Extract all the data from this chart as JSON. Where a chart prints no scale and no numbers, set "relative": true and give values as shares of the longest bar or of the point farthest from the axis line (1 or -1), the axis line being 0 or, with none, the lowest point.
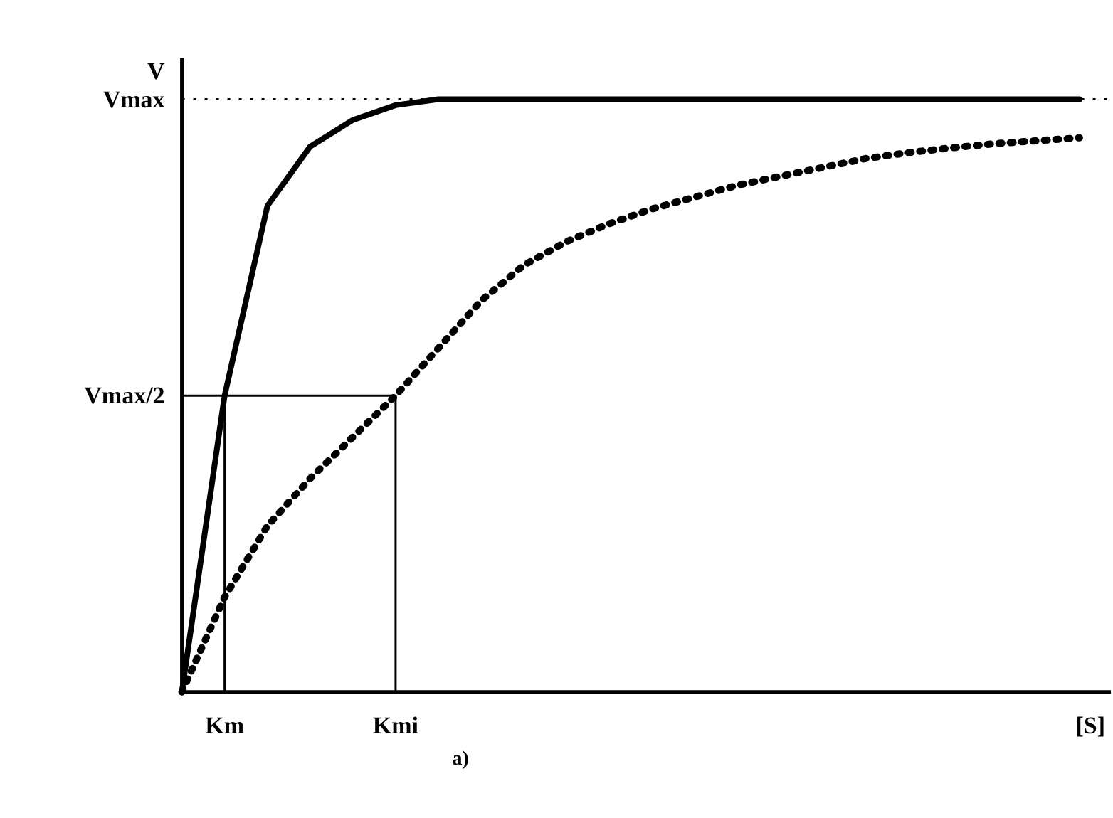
{
  "chart_data": {
    "type": "line",
    "relative": true,
    "xlabel": "[S]",
    "ylabel": "V",
    "categories": [
      null,
      "Km",
      null,
      null,
      null,
      "Kmi",
      null,
      null,
      null,
      null,
      null,
      null,
      null,
      null,
      null,
      null,
      null,
      null,
      null,
      null,
      null,
      null
    ],
    "series": [
      {
        "color": "#000000",
        "line_style": "solid",
        "values": [
          0,
          0.5,
          0.82,
          0.92,
          0.965,
          0.99,
          1,
          1,
          1,
          1,
          1,
          1,
          1,
          1,
          1,
          1,
          1,
          1,
          1,
          1,
          1,
          1
        ]
      },
      {
        "color": "#000000",
        "line_style": "dotted",
        "values": [
          0,
          0.16,
          0.28,
          0.36,
          0.43,
          0.5,
          0.58,
          0.66,
          0.72,
          0.76,
          0.79,
          0.815,
          0.835,
          0.855,
          0.87,
          0.885,
          0.9,
          0.91,
          0.918,
          0.925,
          0.93,
          0.935
        ]
      }
    ],
    "ref_lines": [
      {
        "axis": "y",
        "value": 1,
        "label": "Vmax",
        "line_style": "dotted"
      },
      {
        "axis": "y",
        "value": 0.5,
        "label": "Vmax/2",
        "line_style": "solid"
      },
      {
        "axis": "x",
        "value": "Km",
        "line_style": "solid"
      },
      {
        "axis": "x",
        "value": "Kmi",
        "line_style": "solid"
      }
    ],
    "annotations": [
      "a)"
    ],
    "grid": false
  }
}
